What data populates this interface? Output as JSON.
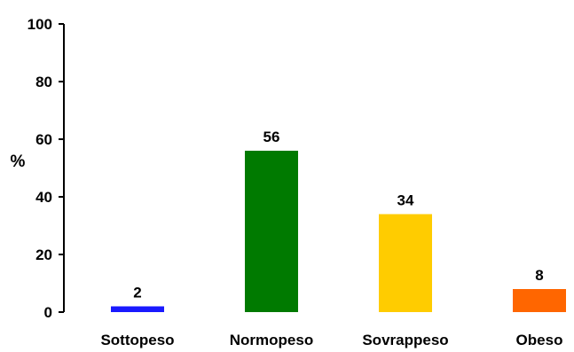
{
  "chart_data": {
    "type": "bar",
    "title": "",
    "xlabel": "",
    "ylabel": "%",
    "ylim": [
      0,
      100
    ],
    "yticks": [
      0,
      20,
      40,
      60,
      80,
      100
    ],
    "categories": [
      "Sottopeso",
      "Normopeso",
      "Sovrappeso",
      "Obeso"
    ],
    "values": [
      2,
      56,
      34,
      8
    ],
    "colors": [
      "#1a1aff",
      "#007a00",
      "#ffcc00",
      "#ff6600"
    ],
    "grid": false,
    "legend": "none"
  }
}
